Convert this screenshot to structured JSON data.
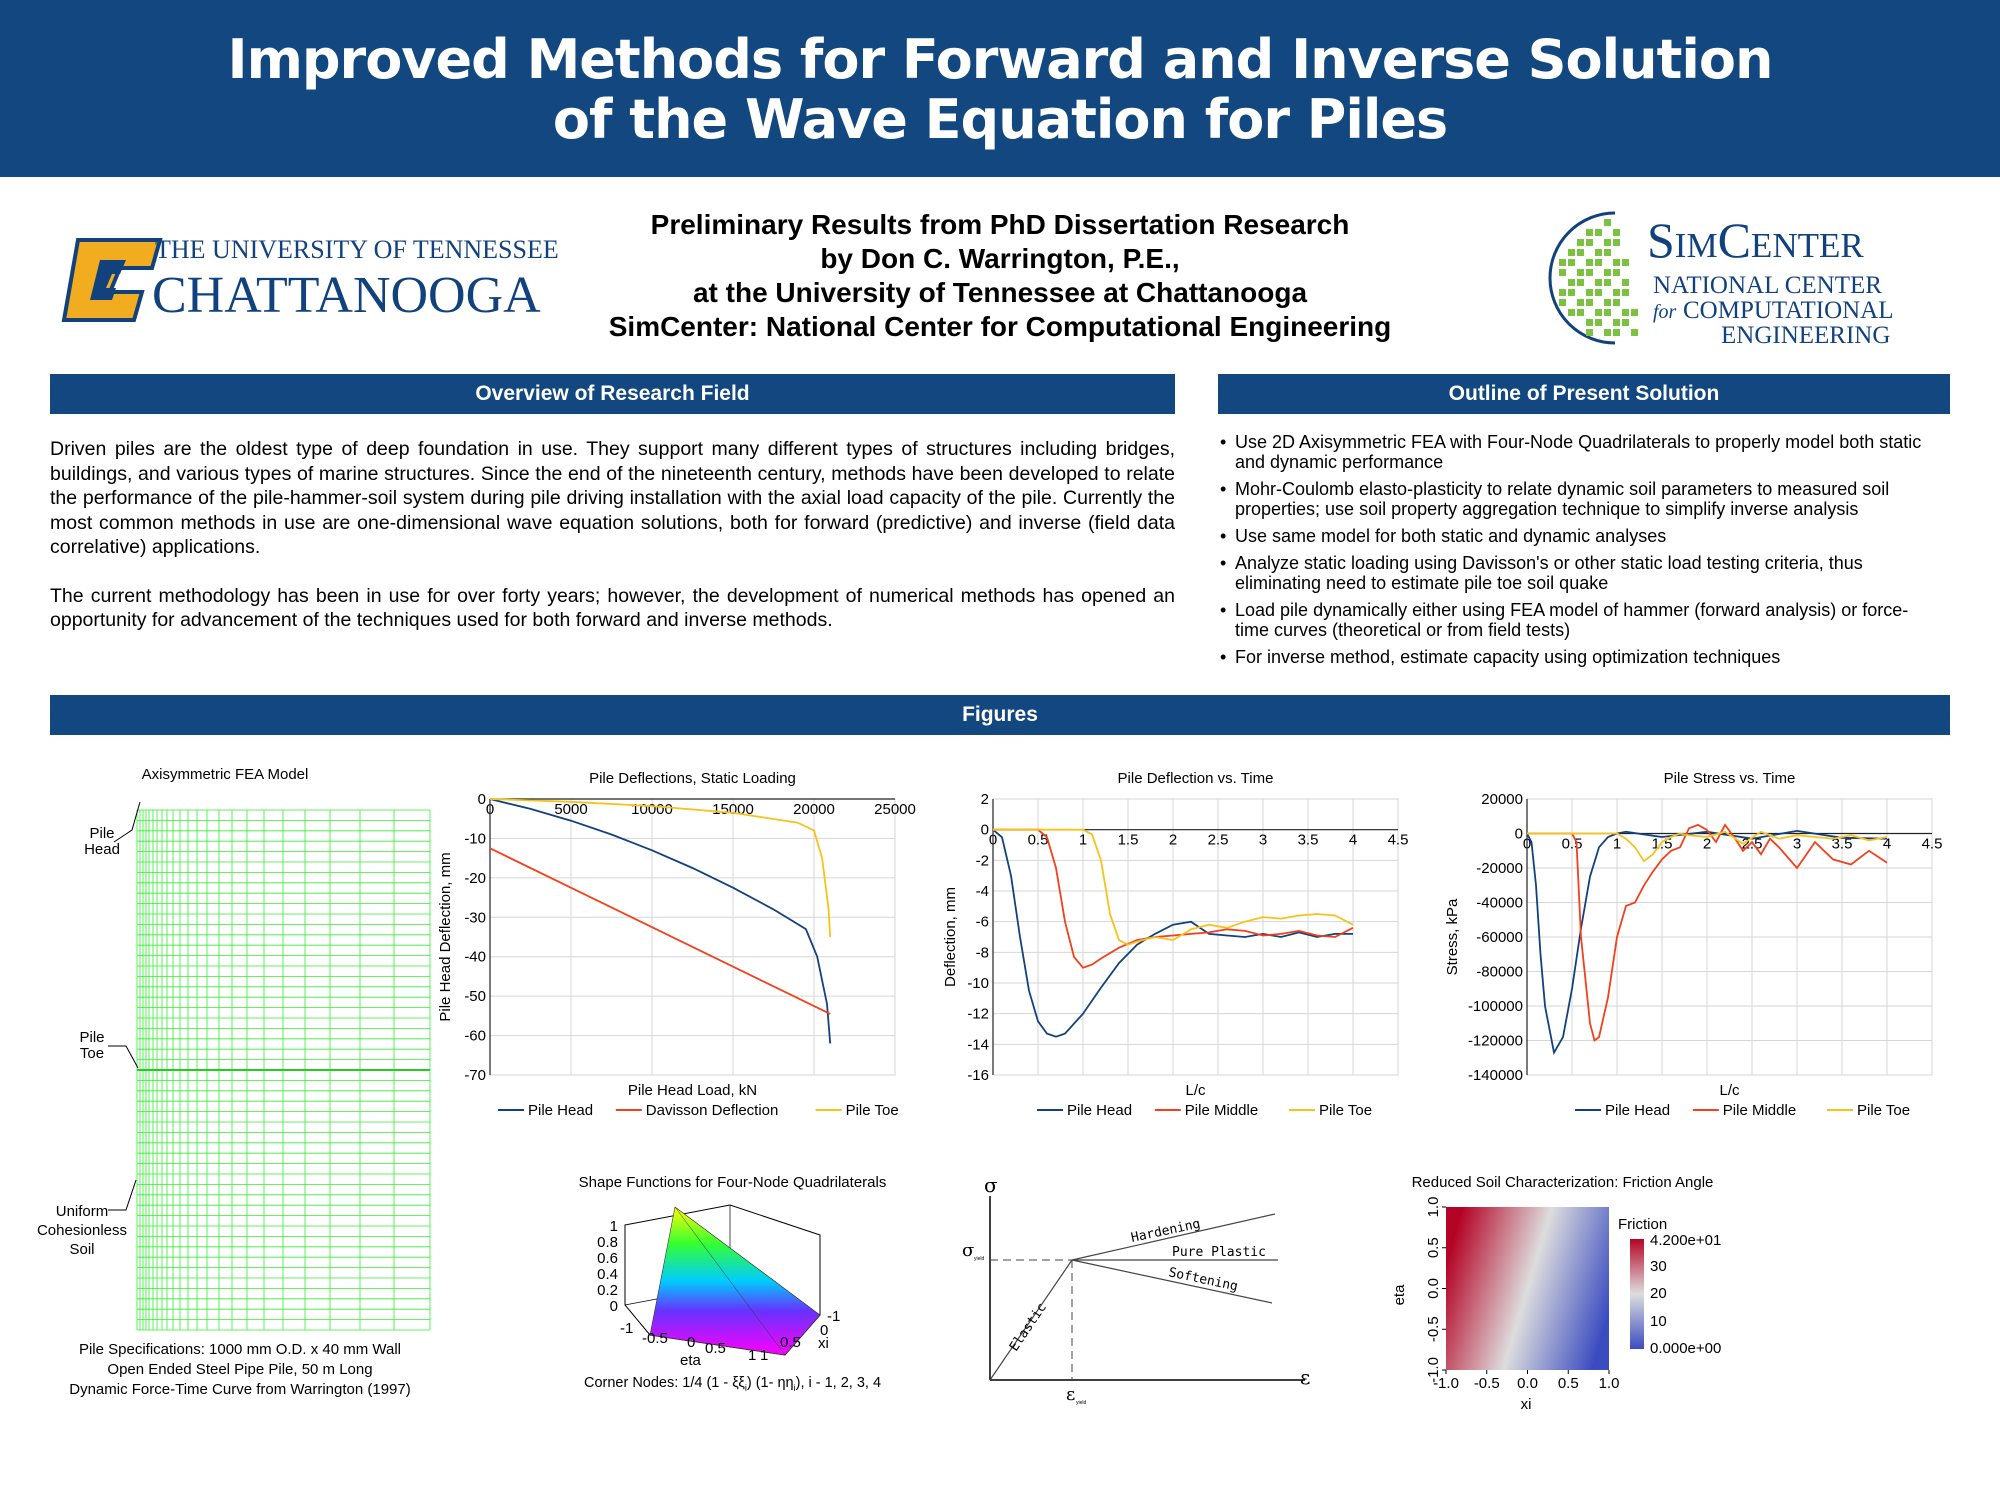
{
  "header": {
    "title_line1": "Improved Methods for Forward and Inverse Solution",
    "title_line2": "of the Wave Equation for Piles"
  },
  "subtitle": {
    "line1": "Preliminary Results from PhD Dissertation Research",
    "line2": "by Don C. Warrington, P.E.,",
    "line3": "at the University of Tennessee at Chattanooga",
    "line4": "SimCenter: National Center for Computational Engineering"
  },
  "logos": {
    "utc_line1": "THE UNIVERSITY OF TENNESSEE",
    "utc_line2": "CHATTANOOGA",
    "sim_line1": "SimCenter",
    "sim_line2": "NATIONAL CENTER",
    "sim_line3_for": "for",
    "sim_line3": "COMPUTATIONAL",
    "sim_line4": "ENGINEERING"
  },
  "sections": {
    "overview_title": "Overview of Research Field",
    "outline_title": "Outline of Present Solution",
    "figures_title": "Figures"
  },
  "overview": {
    "p1": "Driven piles are the oldest type of deep foundation in use. They support many different types of structures including bridges, buildings, and various types of marine structures. Since the end of the nineteenth century, methods have been developed to relate the performance of the pile-hammer-soil system during pile driving installation with the axial load capacity of the pile. Currently the most common methods in use are one-dimensional wave equation solutions, both for forward (predictive) and inverse (field data correlative) applications.",
    "p2": "The current methodology has been in use for over forty years; however, the development of numerical methods has opened an opportunity for advancement of the techniques used for both forward and inverse methods."
  },
  "outline": {
    "items": [
      "Use 2D Axisymmetric FEA with Four-Node Quadrilaterals to properly model both static and dynamic performance",
      "Mohr-Coulomb elasto-plasticity to relate dynamic soil parameters to measured soil properties; use soil property aggregation technique to simplify inverse analysis",
      "Use same model for both static and dynamic analyses",
      "Analyze static loading using Davisson's or other static load testing criteria, thus eliminating need to estimate pile toe soil quake",
      "Load pile dynamically either using FEA model of hammer (forward analysis) or force-time curves (theoretical or from field tests)",
      "For inverse method, estimate capacity using optimization techniques"
    ]
  },
  "fea": {
    "title": "Axisymmetric FEA Model",
    "label_head_1": "Pile",
    "label_head_2": "Head",
    "label_toe_1": "Pile",
    "label_toe_2": "Toe",
    "label_soil_1": "Uniform",
    "label_soil_2": "Cohesionless",
    "label_soil_3": "Soil",
    "caption_1": "Pile Specifications: 1000 mm O.D. x 40 mm Wall",
    "caption_2": "Open Ended Steel Pipe Pile, 50 m Long",
    "caption_3": "Dynamic Force-Time Curve from Warrington (1997)",
    "grid_color": "#33ee33"
  },
  "shape": {
    "title": "Shape Functions for Four-Node Quadrilaterals",
    "z_ticks": [
      "1",
      "0.8",
      "0.6",
      "0.4",
      "0.2",
      "0"
    ],
    "eta_ticks": [
      "-1",
      "-0.5",
      "0",
      "0.5",
      "1"
    ],
    "xi_ticks": [
      "-1",
      "0",
      "0.5",
      "1"
    ],
    "eta_label": "eta",
    "xi_label": "xi",
    "caption_pre": "Corner Nodes: 1/4 (1 - ξξ",
    "caption_i1": "i",
    "caption_mid": ") (1- ηη",
    "caption_i2": "i",
    "caption_post": "), i - 1, 2, 3, 4"
  },
  "plasticity": {
    "sigma": "σ",
    "epsilon": "ε",
    "sigma_yield": "σ",
    "sigma_yield_sub": "yield",
    "eps_yield": "ε",
    "eps_yield_sub": "yield",
    "elastic": "Elastic",
    "hardening": "Hardening",
    "pure_plastic": "Pure Plastic",
    "softening": "Softening"
  },
  "soil": {
    "title": "Reduced Soil Characterization: Friction Angle",
    "x_ticks": [
      "-1.0",
      "-0.5",
      "0.0",
      "0.5",
      "1.0"
    ],
    "y_ticks": [
      "1.0",
      "0.5",
      "0.0",
      "-0.5",
      "-1.0"
    ],
    "xlabel": "xi",
    "ylabel": "eta",
    "cb_title": "Friction",
    "cb_ticks": [
      "4.200e+01",
      "30",
      "20",
      "10",
      "0.000e+00"
    ],
    "color_left": "#b40426",
    "color_mid": "#dddddd",
    "color_right": "#3b4cc0"
  },
  "colors": {
    "banner": "#12487f",
    "pile_head": "#12427e",
    "red": "#f2401c",
    "yellow": "#f7c21b",
    "gold": "#f1ad1f",
    "sim_green": "#7dc142"
  },
  "chart_data": [
    {
      "type": "line",
      "title": "Pile Deflections, Static Loading",
      "xlabel": "Pile Head Load, kN",
      "ylabel": "Pile Head Deflection, mm",
      "xlim": [
        0,
        25000
      ],
      "ylim": [
        -70,
        0
      ],
      "x_ticks": [
        "0",
        "5000",
        "10000",
        "15000",
        "20000",
        "25000"
      ],
      "y_ticks": [
        "0",
        "-10",
        "-20",
        "-30",
        "-40",
        "-50",
        "-60",
        "-70"
      ],
      "series": [
        {
          "name": "Pile Head",
          "x": [
            0,
            2500,
            5000,
            7500,
            10000,
            12500,
            15000,
            17500,
            19500,
            20200,
            20800,
            21000
          ],
          "values": [
            0,
            -2.5,
            -5.5,
            -9,
            -13,
            -17.5,
            -22.5,
            -28,
            -33,
            -40,
            -52,
            -62
          ]
        },
        {
          "name": "Davisson Deflection",
          "x": [
            0,
            21000
          ],
          "values": [
            -12.5,
            -54.5
          ]
        },
        {
          "name": "Pile Toe",
          "x": [
            0,
            5000,
            10000,
            15000,
            19000,
            20000,
            20500,
            20900,
            21000
          ],
          "values": [
            0,
            -0.7,
            -1.8,
            -3.5,
            -6,
            -8,
            -15,
            -28,
            -35
          ]
        }
      ]
    },
    {
      "type": "line",
      "title": "Pile Deflection vs. Time",
      "xlabel": "L/c",
      "ylabel": "Deflection, mm",
      "xlim": [
        0,
        4.5
      ],
      "ylim": [
        -16,
        2
      ],
      "x_ticks": [
        "0",
        "0.5",
        "1",
        "1.5",
        "2",
        "2.5",
        "3",
        "3.5",
        "4",
        "4.5"
      ],
      "y_ticks": [
        "2",
        "0",
        "-2",
        "-4",
        "-6",
        "-8",
        "-10",
        "-12",
        "-14",
        "-16"
      ],
      "series": [
        {
          "name": "Pile Head",
          "x": [
            0,
            0.1,
            0.2,
            0.3,
            0.4,
            0.5,
            0.6,
            0.7,
            0.8,
            1.0,
            1.2,
            1.4,
            1.6,
            1.8,
            2.0,
            2.2,
            2.4,
            2.6,
            2.8,
            3.0,
            3.2,
            3.4,
            3.6,
            3.8,
            4.0
          ],
          "values": [
            0,
            -0.5,
            -3,
            -7,
            -10.5,
            -12.5,
            -13.3,
            -13.5,
            -13.3,
            -12,
            -10.3,
            -8.7,
            -7.5,
            -6.8,
            -6.2,
            -6.0,
            -6.8,
            -6.9,
            -7.0,
            -6.8,
            -7.0,
            -6.7,
            -7.0,
            -6.8,
            -6.8
          ]
        },
        {
          "name": "Pile Middle",
          "x": [
            0,
            0.5,
            0.6,
            0.7,
            0.8,
            0.9,
            1.0,
            1.1,
            1.2,
            1.4,
            1.6,
            1.8,
            2.0,
            2.2,
            2.4,
            2.6,
            2.8,
            3.0,
            3.2,
            3.4,
            3.6,
            3.8,
            4.0
          ],
          "values": [
            0,
            0,
            -0.5,
            -2.5,
            -6,
            -8.3,
            -9.0,
            -8.8,
            -8.4,
            -7.7,
            -7.2,
            -7.0,
            -6.9,
            -6.8,
            -6.7,
            -6.5,
            -6.6,
            -6.9,
            -6.8,
            -6.6,
            -6.9,
            -7.0,
            -6.4
          ]
        },
        {
          "name": "Pile Toe",
          "x": [
            0,
            1.0,
            1.1,
            1.2,
            1.3,
            1.4,
            1.5,
            1.6,
            1.8,
            2.0,
            2.2,
            2.4,
            2.6,
            2.8,
            3.0,
            3.2,
            3.4,
            3.6,
            3.8,
            4.0
          ],
          "values": [
            0,
            0,
            -0.3,
            -2,
            -5.5,
            -7.2,
            -7.5,
            -7.3,
            -7.0,
            -7.2,
            -6.5,
            -6.2,
            -6.4,
            -6.0,
            -5.7,
            -5.8,
            -5.6,
            -5.5,
            -5.6,
            -6.2
          ]
        }
      ]
    },
    {
      "type": "line",
      "title": "Pile Stress vs. Time",
      "xlabel": "L/c",
      "ylabel": "Stress, kPa",
      "xlim": [
        0,
        4.5
      ],
      "ylim": [
        -140000,
        20000
      ],
      "x_ticks": [
        "0",
        "0.5",
        "1",
        "1.5",
        "2",
        "2.5",
        "3",
        "3.5",
        "4",
        "4.5"
      ],
      "y_ticks": [
        "20000",
        "0",
        "-20000",
        "-40000",
        "-60000",
        "-80000",
        "-100000",
        "-120000",
        "-140000"
      ],
      "series": [
        {
          "name": "Pile Head",
          "x": [
            0,
            0.05,
            0.1,
            0.15,
            0.2,
            0.3,
            0.4,
            0.5,
            0.6,
            0.7,
            0.8,
            0.9,
            1.0,
            1.1,
            1.5,
            2.0,
            2.5,
            3.0,
            3.5,
            4.0
          ],
          "values": [
            0,
            -5000,
            -30000,
            -70000,
            -100000,
            -127000,
            -118000,
            -90000,
            -55000,
            -25000,
            -8000,
            -2000,
            0,
            1000,
            -2000,
            1000,
            -3000,
            1500,
            -2500,
            -3000
          ]
        },
        {
          "name": "Pile Middle",
          "x": [
            0,
            0.5,
            0.55,
            0.6,
            0.7,
            0.75,
            0.8,
            0.9,
            1.0,
            1.1,
            1.2,
            1.3,
            1.4,
            1.5,
            1.6,
            1.7,
            1.8,
            1.9,
            2.0,
            2.1,
            2.2,
            2.3,
            2.4,
            2.5,
            2.6,
            2.7,
            2.8,
            3.0,
            3.2,
            3.4,
            3.6,
            3.8,
            4.0
          ],
          "values": [
            0,
            0,
            -5000,
            -60000,
            -110000,
            -120000,
            -118000,
            -95000,
            -60000,
            -42000,
            -40000,
            -30000,
            -22000,
            -15000,
            -10000,
            -8000,
            3000,
            5000,
            2000,
            -5000,
            5000,
            -2000,
            -10000,
            -5000,
            -12000,
            -3000,
            -8000,
            -20000,
            -5000,
            -15000,
            -18000,
            -10000,
            -17000
          ]
        },
        {
          "name": "Pile Toe",
          "x": [
            0,
            1.0,
            1.1,
            1.2,
            1.3,
            1.4,
            1.5,
            1.6,
            1.7,
            1.8,
            2.0,
            2.2,
            2.4,
            2.6,
            2.8,
            3.0,
            3.2,
            3.4,
            3.6,
            3.8,
            4.0
          ],
          "values": [
            0,
            0,
            -3000,
            -8000,
            -16000,
            -12000,
            -5000,
            -2000,
            0,
            -1000,
            -2000,
            1000,
            -6000,
            1000,
            -3000,
            -1000,
            -2000,
            -3000,
            -1000,
            -4000,
            -2000
          ]
        }
      ]
    }
  ]
}
